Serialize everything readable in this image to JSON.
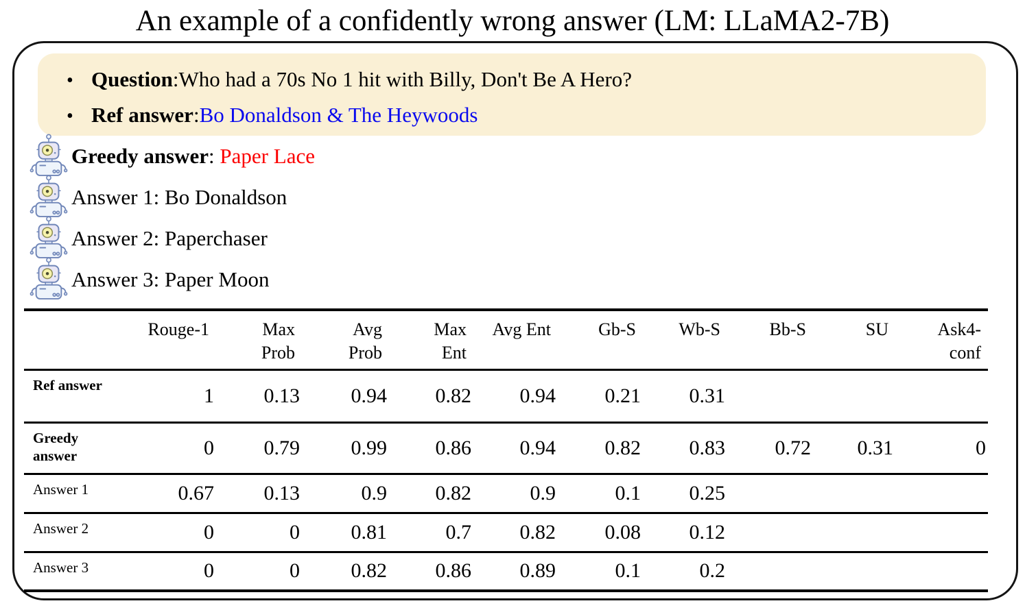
{
  "figure": {
    "title": "An example of a confidently wrong answer (LM: LLaMA2-7B)"
  },
  "colors": {
    "qa_box_background": "#FAF0D5",
    "ref_answer_blue": "#0A0AEE",
    "greedy_answer_red": "#FC0000",
    "frame_border": "#141414",
    "robot_outline": "#7086B8"
  },
  "qa_box": {
    "items": [
      {
        "label": "Question",
        "sep": ": ",
        "value": "Who had a 70s No 1 hit with Billy, Don't Be A Hero?",
        "bold": true,
        "color": "#000000"
      },
      {
        "label": "Ref answer",
        "sep": ": ",
        "value": "Bo Donaldson & The Heywoods",
        "bold": true,
        "color": "#0A0AEE"
      }
    ],
    "bullet": "•"
  },
  "answers": [
    {
      "label": "Greedy answer",
      "sep": ": ",
      "value": "Paper Lace",
      "bold": true,
      "color": "#FC0000",
      "icon": "robot-icon"
    },
    {
      "label": "Answer 1",
      "sep": ": ",
      "value": "Bo Donaldson",
      "bold": false,
      "color": "#000000",
      "icon": "robot-icon"
    },
    {
      "label": "Answer 2",
      "sep": ": ",
      "value": "Paperchaser",
      "bold": false,
      "color": "#000000",
      "icon": "robot-icon"
    },
    {
      "label": "Answer 3",
      "sep": ": ",
      "value": "Paper Moon",
      "bold": false,
      "color": "#000000",
      "icon": "robot-icon"
    }
  ],
  "table": {
    "columns": [
      "",
      "Rouge-1",
      "Max\nProb",
      "Avg\nProb",
      "Max\nEnt",
      "Avg Ent",
      "Gb-S",
      "Wb-S",
      "Bb-S",
      "SU",
      "Ask4-\nconf"
    ],
    "rows": [
      {
        "label": "Ref answer",
        "bold": true,
        "size": "ref",
        "values": [
          "1",
          "0.13",
          "0.94",
          "0.82",
          "0.94",
          "0.21",
          "0.31",
          "",
          "",
          ""
        ]
      },
      {
        "label": "Greedy answer",
        "bold": true,
        "size": "greedy",
        "values": [
          "0",
          "0.79",
          "0.99",
          "0.86",
          "0.94",
          "0.82",
          "0.83",
          "0.72",
          "0.31",
          "0"
        ]
      },
      {
        "label": "Answer 1",
        "bold": false,
        "size": "ans",
        "values": [
          "0.67",
          "0.13",
          "0.9",
          "0.82",
          "0.9",
          "0.1",
          "0.25",
          "",
          "",
          ""
        ]
      },
      {
        "label": "Answer 2",
        "bold": false,
        "size": "ans",
        "values": [
          "0",
          "0",
          "0.81",
          "0.7",
          "0.82",
          "0.08",
          "0.12",
          "",
          "",
          ""
        ]
      },
      {
        "label": "Answer 3",
        "bold": false,
        "size": "ans",
        "values": [
          "0",
          "0",
          "0.82",
          "0.86",
          "0.89",
          "0.1",
          "0.2",
          "",
          "",
          ""
        ]
      }
    ]
  }
}
